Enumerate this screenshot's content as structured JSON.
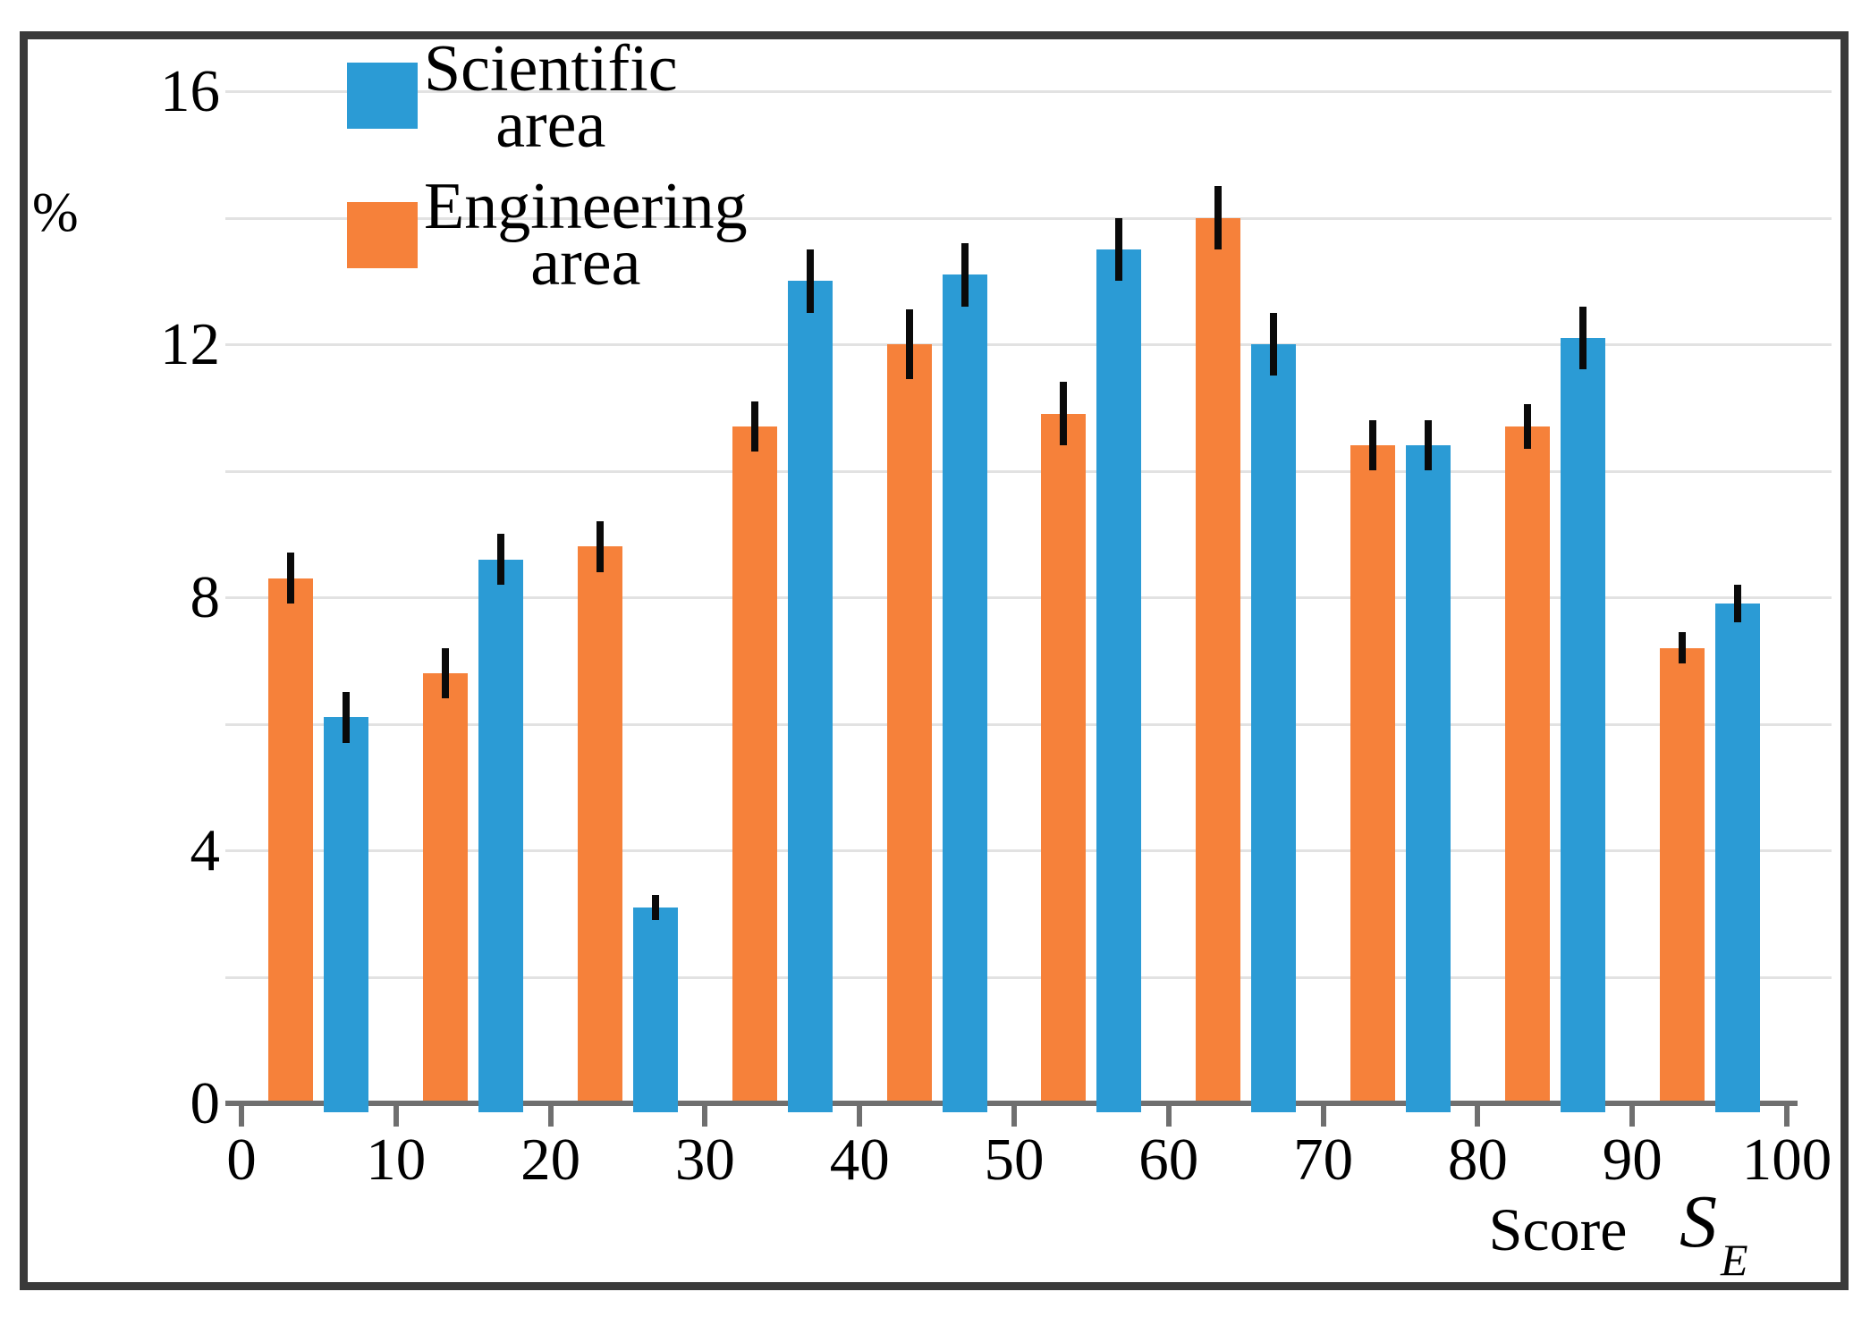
{
  "figure": {
    "ylabel": "%",
    "xlabel": "Score"
  },
  "legend": [
    {
      "line1": "Scientific",
      "line2": "area",
      "color": "#2b9bd5"
    },
    {
      "line1": "Engineering",
      "line2": "area",
      "color": "#f6813a"
    }
  ],
  "chart_data": {
    "type": "bar",
    "title": "",
    "xlabel": "Score",
    "ylabel": "%",
    "x_symbol": "S",
    "x_symbol_sub": "E",
    "categories": [
      "0-10",
      "10-20",
      "20-30",
      "30-40",
      "40-50",
      "50-60",
      "60-70",
      "70-80",
      "80-90",
      "90-100"
    ],
    "x_tick_labels": [
      "0",
      "10",
      "20",
      "30",
      "40",
      "50",
      "60",
      "70",
      "80",
      "90",
      "100"
    ],
    "y_ticks": [
      0,
      4,
      8,
      12,
      16
    ],
    "y_tick_labels": [
      "0",
      "4",
      "8",
      "12",
      "16"
    ],
    "grid_values": [
      2,
      4,
      6,
      8,
      10,
      12,
      14,
      16
    ],
    "xlim": [
      0,
      100
    ],
    "ylim": [
      0,
      17
    ],
    "grid": "horizontal",
    "legend_position": "top-left",
    "error_bars": true,
    "series": [
      {
        "name": "Engineering area",
        "key": "engineering",
        "color": "#f6813a",
        "values": [
          8.3,
          6.8,
          8.8,
          10.7,
          12.0,
          10.9,
          14.0,
          10.4,
          10.7,
          7.2
        ],
        "errors": [
          0.4,
          0.4,
          0.4,
          0.4,
          0.55,
          0.5,
          0.5,
          0.4,
          0.35,
          0.25
        ]
      },
      {
        "name": "Scientific area",
        "key": "scientific",
        "color": "#2b9bd5",
        "values": [
          6.1,
          8.6,
          3.1,
          13.0,
          13.1,
          13.5,
          12.0,
          10.4,
          12.1,
          7.9
        ],
        "errors": [
          0.4,
          0.4,
          0.2,
          0.5,
          0.5,
          0.5,
          0.5,
          0.4,
          0.5,
          0.3
        ]
      }
    ],
    "colors": {
      "grid": "#e2e2e2",
      "axis": "#6f6f6f",
      "frame": "#3a3a3a",
      "error_bar": "#0a0a0a",
      "background": "#ffffff"
    }
  }
}
